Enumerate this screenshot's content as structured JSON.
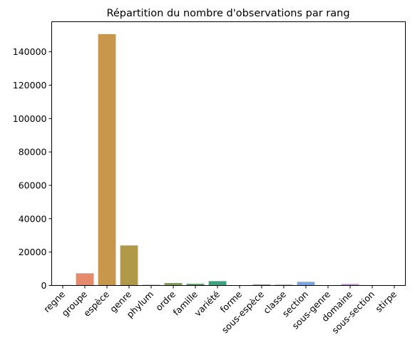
{
  "chart_data": {
    "type": "bar",
    "title": "Répartition du nombre d'observations par rang",
    "xlabel": "",
    "ylabel": "",
    "categories": [
      "regne",
      "groupe",
      "espèce",
      "genre",
      "phylum",
      "ordre",
      "famille",
      "variété",
      "forme",
      "sous-espèce",
      "classe",
      "section",
      "sous-genre",
      "domaine",
      "sous-section",
      "stirpe"
    ],
    "values": [
      300,
      7300,
      150600,
      24000,
      400,
      1500,
      1000,
      2600,
      50,
      600,
      500,
      2200,
      200,
      900,
      20,
      10
    ],
    "colors": [
      "#d6a27e",
      "#e58a6a",
      "#c9974c",
      "#b09a4a",
      "#94a34a",
      "#7ba34a",
      "#4e9e58",
      "#3aa57d",
      "#3ea3a3",
      "#43a1bb",
      "#55a2d4",
      "#7aa6e4",
      "#a59be4",
      "#c98be0",
      "#e07fd3",
      "#e77fae"
    ],
    "ylim": [
      0,
      158000
    ],
    "yticks": [
      0,
      20000,
      40000,
      60000,
      80000,
      100000,
      120000,
      140000
    ],
    "ytick_labels": [
      "0",
      "20000",
      "40000",
      "60000",
      "80000",
      "100000",
      "120000",
      "140000"
    ],
    "grid": false,
    "legend": "none"
  }
}
